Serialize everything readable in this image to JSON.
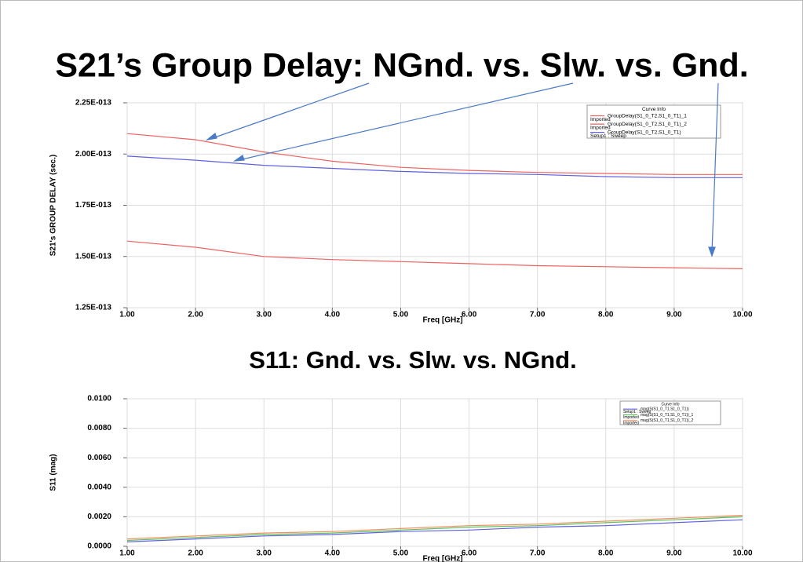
{
  "chart_data": [
    {
      "type": "line",
      "title": "S21’s Group Delay: NGnd. vs. Slw. vs. Gnd.",
      "x_label": "Freq [GHz]",
      "y_label": "S21's GROUP DELAY (sec.)",
      "legend_title": "Curve Info",
      "legend_position": "top-right",
      "grid": true,
      "x": [
        1,
        2,
        3,
        4,
        5,
        6,
        7,
        8,
        9,
        10
      ],
      "xlim": [
        1,
        10
      ],
      "xticks": [
        {
          "value": 1,
          "label": "1.00"
        },
        {
          "value": 2,
          "label": "2.00"
        },
        {
          "value": 3,
          "label": "3.00"
        },
        {
          "value": 4,
          "label": "4.00"
        },
        {
          "value": 5,
          "label": "5.00"
        },
        {
          "value": 6,
          "label": "6.00"
        },
        {
          "value": 7,
          "label": "7.00"
        },
        {
          "value": 8,
          "label": "8.00"
        },
        {
          "value": 9,
          "label": "9.00"
        },
        {
          "value": 10,
          "label": "10.00"
        }
      ],
      "ylim": [
        1.25e-13,
        2.25e-13
      ],
      "yticks": [
        {
          "value": 1.25e-13,
          "label": "1.25E-013"
        },
        {
          "value": 1.5e-13,
          "label": "1.50E-013"
        },
        {
          "value": 1.75e-13,
          "label": "1.75E-013"
        },
        {
          "value": 2e-13,
          "label": "2.00E-013"
        },
        {
          "value": 2.25e-13,
          "label": "2.25E-013"
        }
      ],
      "series": [
        {
          "name": "GroupDelay(S1_0_T2,S1_0_T1)_1",
          "source": "Imported",
          "color": "#f06060",
          "values": [
            2.1e-13,
            2.07e-13,
            2.01e-13,
            1.965e-13,
            1.935e-13,
            1.92e-13,
            1.91e-13,
            1.905e-13,
            1.9e-13,
            1.9e-13
          ]
        },
        {
          "name": "GroupDelay(S1_0_T2,S1_0_T1)_2",
          "source": "Imported",
          "color": "#f06060",
          "values": [
            1.575e-13,
            1.545e-13,
            1.5e-13,
            1.485e-13,
            1.475e-13,
            1.465e-13,
            1.455e-13,
            1.45e-13,
            1.445e-13,
            1.44e-13
          ]
        },
        {
          "name": "GroupDelay(S1_0_T2,S1_0_T1)",
          "source": "Setup1 : Sweep",
          "color": "#6060e0",
          "values": [
            1.99e-13,
            1.97e-13,
            1.945e-13,
            1.93e-13,
            1.915e-13,
            1.905e-13,
            1.9e-13,
            1.89e-13,
            1.885e-13,
            1.885e-13
          ]
        }
      ]
    },
    {
      "type": "line",
      "title": "S11: Gnd. vs. Slw. vs. NGnd.",
      "x_label": "Freq [GHz]",
      "y_label": "S11 (mag)",
      "legend_title": "Curve Info",
      "legend_position": "top-right",
      "grid": true,
      "x": [
        1,
        2,
        3,
        4,
        5,
        6,
        7,
        8,
        9,
        10
      ],
      "xlim": [
        1,
        10
      ],
      "xticks": [
        {
          "value": 1,
          "label": "1.00"
        },
        {
          "value": 2,
          "label": "2.00"
        },
        {
          "value": 3,
          "label": "3.00"
        },
        {
          "value": 4,
          "label": "4.00"
        },
        {
          "value": 5,
          "label": "5.00"
        },
        {
          "value": 6,
          "label": "6.00"
        },
        {
          "value": 7,
          "label": "7.00"
        },
        {
          "value": 8,
          "label": "8.00"
        },
        {
          "value": 9,
          "label": "9.00"
        },
        {
          "value": 10,
          "label": "10.00"
        }
      ],
      "ylim": [
        0,
        0.01
      ],
      "yticks": [
        {
          "value": 0,
          "label": "0.0000"
        },
        {
          "value": 0.002,
          "label": "0.0020"
        },
        {
          "value": 0.004,
          "label": "0.0040"
        },
        {
          "value": 0.006,
          "label": "0.0060"
        },
        {
          "value": 0.008,
          "label": "0.0080"
        },
        {
          "value": 0.01,
          "label": "0.0100"
        }
      ],
      "series": [
        {
          "name": "mag(S(S1_0_T1,S1_0_T1))",
          "source": "Setup1 : Sweep",
          "color": "#6060e0",
          "values": [
            0.0003,
            0.0005,
            0.0007,
            0.0008,
            0.001,
            0.0011,
            0.0013,
            0.0014,
            0.0016,
            0.0018
          ]
        },
        {
          "name": "mag(S(S1_0_T1,S1_0_T1))_1",
          "source": "Imported",
          "color": "#60c060",
          "values": [
            0.0004,
            0.0006,
            0.0008,
            0.0009,
            0.0011,
            0.0013,
            0.0014,
            0.0016,
            0.0018,
            0.002
          ]
        },
        {
          "name": "mag(S(S1_0_T1,S1_0_T1))_2",
          "source": "Imported",
          "color": "#f09060",
          "values": [
            0.0005,
            0.0007,
            0.0009,
            0.001,
            0.0012,
            0.0014,
            0.0015,
            0.0017,
            0.0019,
            0.0021
          ]
        }
      ]
    }
  ]
}
